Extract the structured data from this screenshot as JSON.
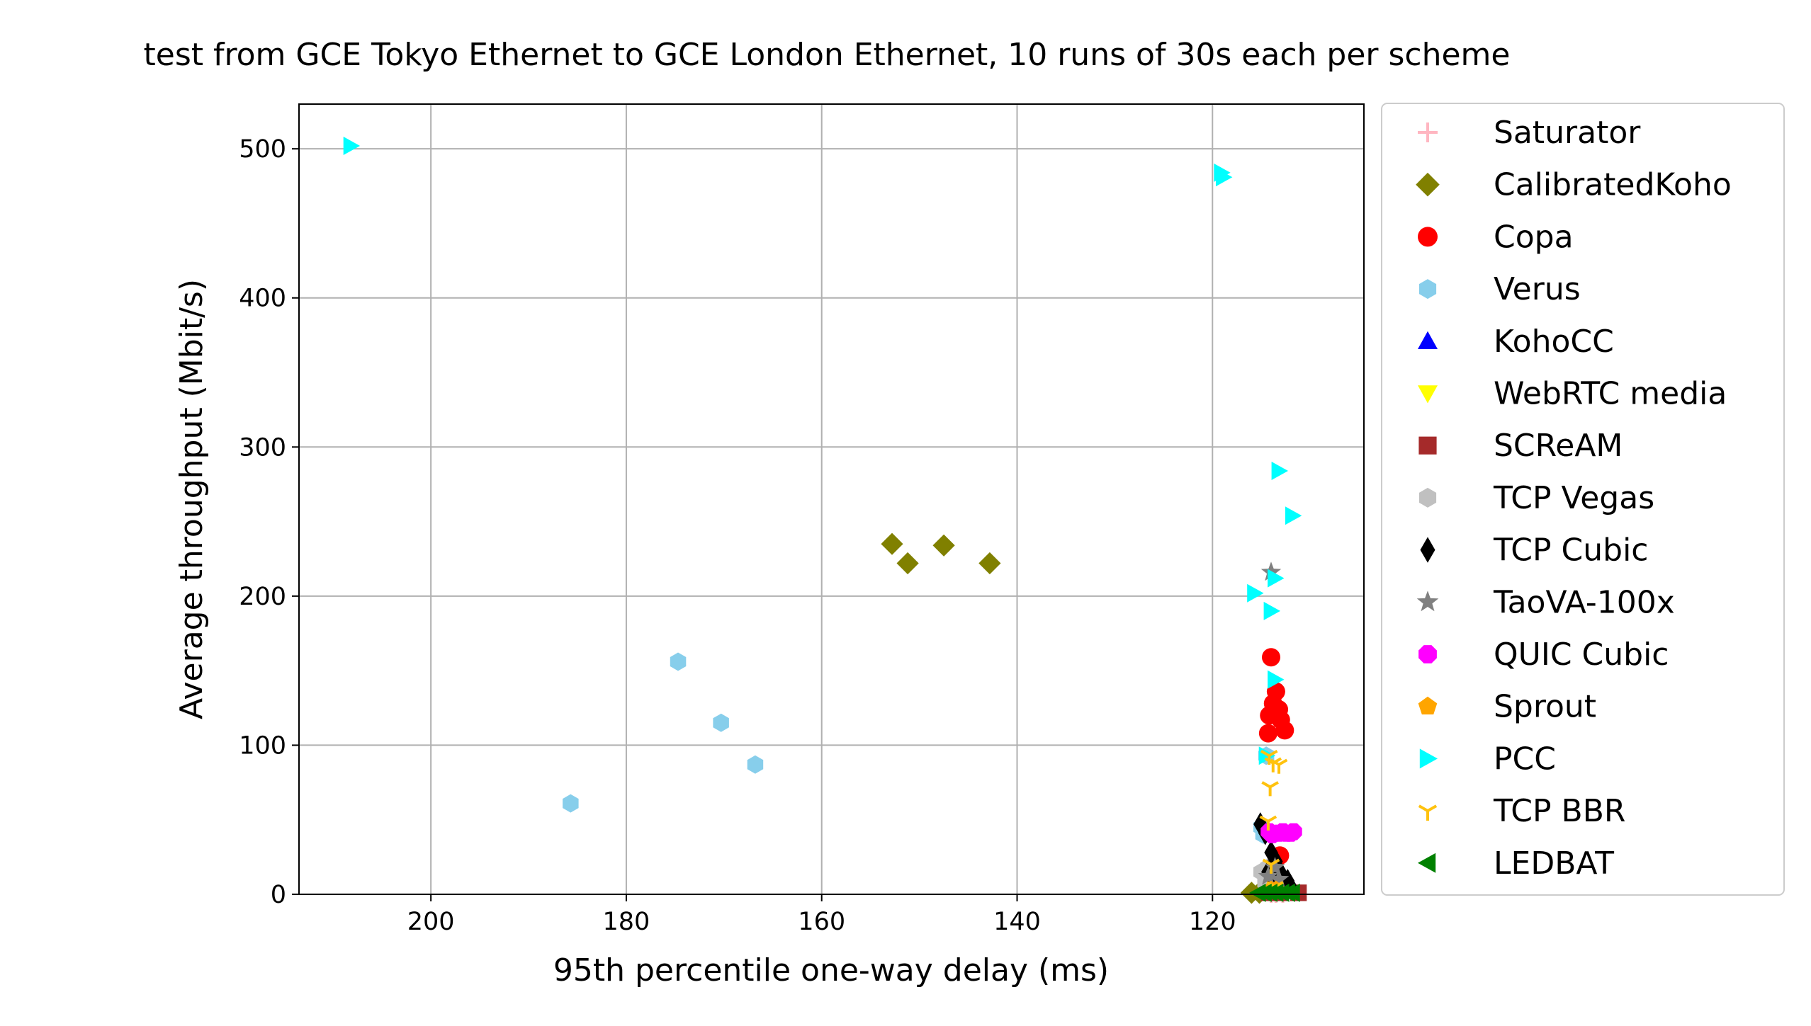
{
  "chart_data": {
    "type": "scatter",
    "title": "test from GCE Tokyo Ethernet to GCE London Ethernet, 10 runs of 30s each per scheme",
    "xlabel": "95th percentile one-way delay (ms)",
    "ylabel": "Average throughput (Mbit/s)",
    "xlim": [
      213.5,
      104.5
    ],
    "ylim": [
      0,
      530
    ],
    "x_inverted": true,
    "xticks": [
      200,
      180,
      160,
      140,
      120
    ],
    "yticks": [
      0,
      100,
      200,
      300,
      400,
      500
    ],
    "grid": true,
    "legend_position": "outside-right",
    "series": [
      {
        "name": "Saturator",
        "marker": "plus",
        "color": "#ffb6c1",
        "points": [
          [
            114.0,
            0.5
          ],
          [
            113.5,
            0.5
          ],
          [
            112.8,
            0.5
          ]
        ]
      },
      {
        "name": "CalibratedKoho",
        "marker": "diamond",
        "color": "#808000",
        "points": [
          [
            152.8,
            235
          ],
          [
            151.2,
            222
          ],
          [
            147.5,
            234
          ],
          [
            142.8,
            222
          ],
          [
            116.0,
            1
          ],
          [
            115.2,
            1
          ]
        ]
      },
      {
        "name": "Copa",
        "marker": "circle",
        "color": "#ff0000",
        "points": [
          [
            114.0,
            159
          ],
          [
            113.5,
            136
          ],
          [
            113.8,
            128
          ],
          [
            113.2,
            124
          ],
          [
            114.2,
            120
          ],
          [
            113.0,
            117
          ],
          [
            114.3,
            108
          ],
          [
            112.6,
            110
          ],
          [
            113.1,
            26
          ]
        ]
      },
      {
        "name": "Verus",
        "marker": "hexagon",
        "color": "#87ceeb",
        "points": [
          [
            174.7,
            156
          ],
          [
            170.3,
            115
          ],
          [
            166.8,
            87
          ],
          [
            185.7,
            61
          ],
          [
            114.5,
            93
          ],
          [
            115.0,
            45
          ],
          [
            114.8,
            40
          ]
        ]
      },
      {
        "name": "KohoCC",
        "marker": "triangle-up",
        "color": "#0000ff",
        "points": [
          [
            113.8,
            2
          ],
          [
            113.1,
            2
          ]
        ]
      },
      {
        "name": "WebRTC media",
        "marker": "triangle-down",
        "color": "#ffff00",
        "points": [
          [
            114.0,
            2
          ],
          [
            113.4,
            2
          ]
        ]
      },
      {
        "name": "SCReAM",
        "marker": "square",
        "color": "#a52a2a",
        "points": [
          [
            114.2,
            1
          ],
          [
            113.0,
            1
          ],
          [
            111.2,
            1
          ]
        ]
      },
      {
        "name": "TCP Vegas",
        "marker": "hexagon",
        "color": "#c0c0c0",
        "points": [
          [
            115.0,
            15
          ],
          [
            114.3,
            18
          ],
          [
            113.8,
            12
          ],
          [
            114.6,
            8
          ]
        ]
      },
      {
        "name": "TCP Cubic",
        "marker": "thin-diamond",
        "color": "#000000",
        "points": [
          [
            115.1,
            47
          ],
          [
            114.6,
            41
          ],
          [
            114.0,
            28
          ],
          [
            113.5,
            22
          ],
          [
            114.3,
            15
          ],
          [
            112.9,
            13
          ],
          [
            112.3,
            9
          ],
          [
            113.6,
            7
          ],
          [
            112.0,
            5
          ]
        ]
      },
      {
        "name": "TaoVA-100x",
        "marker": "star",
        "color": "#808080",
        "points": [
          [
            114.0,
            216
          ],
          [
            113.6,
            18
          ],
          [
            114.3,
            12
          ],
          [
            113.2,
            10
          ]
        ]
      },
      {
        "name": "QUIC Cubic",
        "marker": "octagon",
        "color": "#ff00ff",
        "points": [
          [
            114.2,
            42
          ],
          [
            113.7,
            41
          ],
          [
            113.2,
            41
          ],
          [
            112.8,
            42
          ],
          [
            112.4,
            41
          ],
          [
            112.0,
            41
          ],
          [
            111.7,
            42
          ],
          [
            113.9,
            40
          ]
        ]
      },
      {
        "name": "Sprout",
        "marker": "pentagon",
        "color": "#ffa500",
        "points": [
          [
            114.0,
            3
          ],
          [
            113.5,
            3
          ]
        ]
      },
      {
        "name": "PCC",
        "marker": "triangle-right",
        "color": "#00ffff",
        "points": [
          [
            208.2,
            502
          ],
          [
            119.1,
            484
          ],
          [
            118.9,
            481
          ],
          [
            113.2,
            284
          ],
          [
            111.8,
            254
          ],
          [
            113.6,
            212
          ],
          [
            115.7,
            202
          ],
          [
            114.0,
            190
          ],
          [
            113.6,
            144
          ],
          [
            114.5,
            93
          ]
        ]
      },
      {
        "name": "TCP BBR",
        "marker": "tri-down",
        "color": "#ffc20e",
        "points": [
          [
            114.2,
            93
          ],
          [
            113.8,
            88
          ],
          [
            113.2,
            87
          ],
          [
            114.1,
            72
          ],
          [
            114.3,
            49
          ],
          [
            114.0,
            20
          ],
          [
            113.6,
            5
          ]
        ]
      },
      {
        "name": "LEDBAT",
        "marker": "triangle-left",
        "color": "#008000",
        "points": [
          [
            115.3,
            1
          ],
          [
            114.7,
            1
          ],
          [
            114.1,
            1
          ],
          [
            113.5,
            1
          ],
          [
            112.9,
            1
          ],
          [
            112.3,
            1
          ],
          [
            111.8,
            1
          ]
        ]
      }
    ]
  }
}
